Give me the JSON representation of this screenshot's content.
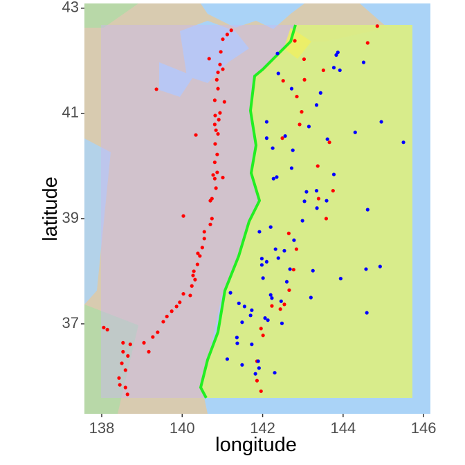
{
  "chart_data": {
    "type": "scatter",
    "x_label": "longitude",
    "y_label": "latitude",
    "xlim": [
      137.57,
      146.17
    ],
    "ylim": [
      35.29,
      43.09
    ],
    "xticks": [
      138,
      140,
      142,
      144,
      146
    ],
    "yticks": [
      37,
      39,
      41,
      43
    ],
    "series": [
      {
        "color": "#ff0000",
        "x": [
          141.22,
          141.12,
          141.01,
          140.67,
          140.96,
          140.94,
          141.01,
          140.89,
          139.36,
          140.86,
          140.89,
          140.81,
          141.05,
          140.94,
          140.82,
          140.91,
          140.81,
          140.84,
          140.34,
          140.89,
          140.82,
          140.87,
          140.81,
          140.87,
          140.77,
          141.01,
          140.81,
          140.84,
          140.74,
          140.7,
          140.03,
          140.74,
          140.7,
          140.55,
          140.55,
          140.5,
          140.39,
          140.44,
          140.38,
          140.29,
          140.27,
          140.32,
          140.24,
          140.2,
          140.03,
          139.94,
          139.86,
          139.74,
          139.62,
          139.53,
          139.39,
          139.27,
          139.05,
          139.17,
          138.71,
          138.53,
          138.53,
          138.05,
          138.14,
          138.65,
          138.5,
          138.59,
          138.43,
          138.45,
          138.59,
          138.64,
          142.8,
          143.03,
          143.04,
          142.85,
          142.97,
          142.92,
          143.66,
          142.49,
          143.37,
          143.75,
          143.39,
          143.58,
          142.65,
          142.84,
          142.77,
          142.66,
          142.54,
          142.44,
          142.23,
          141.96,
          142.01,
          141.86,
          141.86,
          141.96,
          144.61,
          144.85,
          143.51,
          142.51
        ],
        "y": [
          42.58,
          42.5,
          42.41,
          42.04,
          42.17,
          41.93,
          41.84,
          41.78,
          41.46,
          41.64,
          41.47,
          41.25,
          41.22,
          41.01,
          40.96,
          40.88,
          40.79,
          40.68,
          40.59,
          40.61,
          40.42,
          40.22,
          40.07,
          39.88,
          39.83,
          39.78,
          39.76,
          39.58,
          39.38,
          39.34,
          39.05,
          39.0,
          38.89,
          38.75,
          38.62,
          38.45,
          38.34,
          38.29,
          38.13,
          38.0,
          37.92,
          37.84,
          37.72,
          37.54,
          37.57,
          37.41,
          37.33,
          37.24,
          37.14,
          37.04,
          36.84,
          36.75,
          36.64,
          36.47,
          36.61,
          36.64,
          36.47,
          36.93,
          36.89,
          36.39,
          36.25,
          36.12,
          35.97,
          35.84,
          35.79,
          35.66,
          42.38,
          42.03,
          41.64,
          41.32,
          41.03,
          40.79,
          40.45,
          40.53,
          40.0,
          39.53,
          39.38,
          39.0,
          38.72,
          38.42,
          38.03,
          37.64,
          37.37,
          37.28,
          37.34,
          36.91,
          36.78,
          36.29,
          35.92,
          35.72,
          42.34,
          42.66,
          41.82,
          41.62
        ]
      },
      {
        "color": "#0000ff",
        "x": [
          142.37,
          143.87,
          143.83,
          143.77,
          144.51,
          143.92,
          142.39,
          142.72,
          143.44,
          143.34,
          142.1,
          142.56,
          142.1,
          144.95,
          144.3,
          142.25,
          142.75,
          145.5,
          143.61,
          143.15,
          143.77,
          142.72,
          142.35,
          142.27,
          143.09,
          143.34,
          143.59,
          143.04,
          143.35,
          144.61,
          142.99,
          142.2,
          141.92,
          142.78,
          142.32,
          142.54,
          141.98,
          142.1,
          142.39,
          141.98,
          142.68,
          143.25,
          142.01,
          142.6,
          144.92,
          144.57,
          143.94,
          141.2,
          142.2,
          142.23,
          141.41,
          141.55,
          141.73,
          142.46,
          143.2,
          144.59,
          141.7,
          141.49,
          142.06,
          142.13,
          142.48,
          141.36,
          141.37,
          141.73,
          141.49,
          141.12,
          141.89,
          141.91,
          141.82,
          142.3
        ],
        "y": [
          42.14,
          42.16,
          42.11,
          41.87,
          41.97,
          41.82,
          41.76,
          41.47,
          41.39,
          41.16,
          40.84,
          40.57,
          40.53,
          40.84,
          40.64,
          40.34,
          40.3,
          40.45,
          40.51,
          40.75,
          39.84,
          39.96,
          39.79,
          39.76,
          39.51,
          39.53,
          39.34,
          39.33,
          39.2,
          39.17,
          38.96,
          38.84,
          38.75,
          38.59,
          38.42,
          38.39,
          38.24,
          38.18,
          38.25,
          38.12,
          38.04,
          38.01,
          37.87,
          37.8,
          38.09,
          38.04,
          37.86,
          37.59,
          37.55,
          37.49,
          37.39,
          37.33,
          37.26,
          37.43,
          37.5,
          37.21,
          37.16,
          37.03,
          37.11,
          37.07,
          37.01,
          36.74,
          36.63,
          36.61,
          36.22,
          36.33,
          36.29,
          36.16,
          36.05,
          36.07
        ]
      }
    ]
  }
}
